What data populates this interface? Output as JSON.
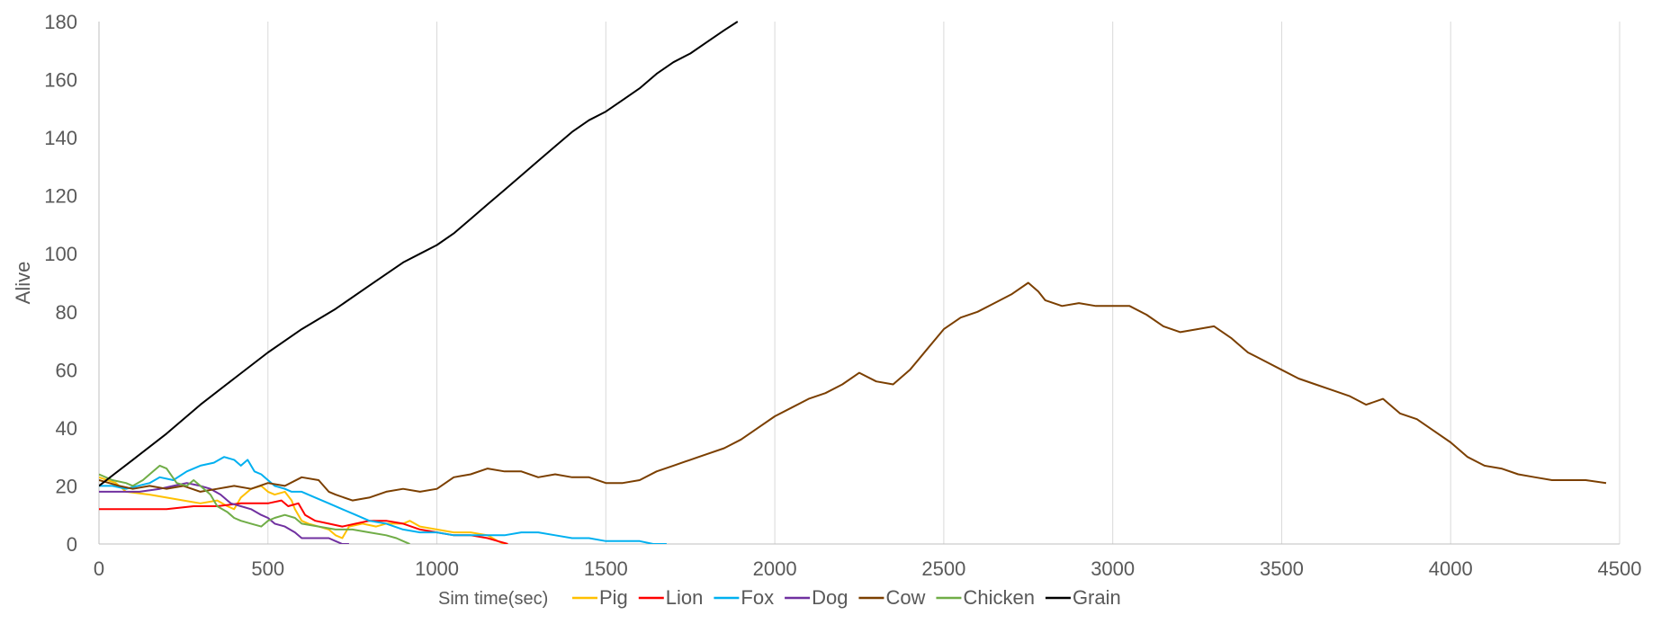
{
  "chart_data": {
    "type": "line",
    "title": "",
    "xlabel": "Sim time(sec)",
    "ylabel": "Alive",
    "xlim": [
      0,
      4500
    ],
    "ylim": [
      0,
      180
    ],
    "xticks": [
      0,
      500,
      1000,
      1500,
      2000,
      2500,
      3000,
      3500,
      4000,
      4500
    ],
    "yticks": [
      0,
      20,
      40,
      60,
      80,
      100,
      120,
      140,
      160,
      180
    ],
    "x_gridlines": true,
    "y_gridlines": false,
    "legend_position": "bottom",
    "series": [
      {
        "name": "Pig",
        "color": "#FFC000",
        "points": [
          [
            0,
            23
          ],
          [
            50,
            21
          ],
          [
            80,
            18
          ],
          [
            150,
            17
          ],
          [
            200,
            16
          ],
          [
            250,
            15
          ],
          [
            300,
            14
          ],
          [
            350,
            15
          ],
          [
            380,
            13
          ],
          [
            400,
            12
          ],
          [
            420,
            16
          ],
          [
            450,
            19
          ],
          [
            480,
            20
          ],
          [
            500,
            18
          ],
          [
            520,
            17
          ],
          [
            550,
            18
          ],
          [
            570,
            15
          ],
          [
            580,
            12
          ],
          [
            600,
            8
          ],
          [
            620,
            7
          ],
          [
            650,
            6
          ],
          [
            680,
            5
          ],
          [
            700,
            3
          ],
          [
            720,
            2
          ],
          [
            740,
            6
          ],
          [
            780,
            7
          ],
          [
            820,
            6
          ],
          [
            850,
            7
          ],
          [
            900,
            7
          ],
          [
            920,
            8
          ],
          [
            950,
            6
          ],
          [
            1000,
            5
          ],
          [
            1050,
            4
          ],
          [
            1100,
            4
          ],
          [
            1150,
            3
          ],
          [
            1180,
            1
          ],
          [
            1200,
            0
          ]
        ]
      },
      {
        "name": "Lion",
        "color": "#FF0000",
        "points": [
          [
            0,
            12
          ],
          [
            100,
            12
          ],
          [
            200,
            12
          ],
          [
            280,
            13
          ],
          [
            350,
            13
          ],
          [
            420,
            14
          ],
          [
            460,
            14
          ],
          [
            500,
            14
          ],
          [
            540,
            15
          ],
          [
            560,
            13
          ],
          [
            590,
            14
          ],
          [
            610,
            10
          ],
          [
            640,
            8
          ],
          [
            680,
            7
          ],
          [
            720,
            6
          ],
          [
            760,
            7
          ],
          [
            800,
            8
          ],
          [
            850,
            8
          ],
          [
            900,
            7
          ],
          [
            950,
            5
          ],
          [
            1000,
            4
          ],
          [
            1050,
            3
          ],
          [
            1100,
            3
          ],
          [
            1150,
            2
          ],
          [
            1180,
            1
          ],
          [
            1210,
            0
          ]
        ]
      },
      {
        "name": "Fox",
        "color": "#00B0F0",
        "points": [
          [
            0,
            20
          ],
          [
            40,
            20
          ],
          [
            80,
            19
          ],
          [
            150,
            21
          ],
          [
            180,
            23
          ],
          [
            220,
            22
          ],
          [
            260,
            25
          ],
          [
            300,
            27
          ],
          [
            340,
            28
          ],
          [
            370,
            30
          ],
          [
            400,
            29
          ],
          [
            420,
            27
          ],
          [
            440,
            29
          ],
          [
            460,
            25
          ],
          [
            480,
            24
          ],
          [
            500,
            22
          ],
          [
            520,
            20
          ],
          [
            550,
            19
          ],
          [
            570,
            18
          ],
          [
            600,
            18
          ],
          [
            640,
            16
          ],
          [
            680,
            14
          ],
          [
            720,
            12
          ],
          [
            760,
            10
          ],
          [
            800,
            8
          ],
          [
            850,
            7
          ],
          [
            900,
            5
          ],
          [
            950,
            4
          ],
          [
            1000,
            4
          ],
          [
            1050,
            3
          ],
          [
            1100,
            3
          ],
          [
            1200,
            3
          ],
          [
            1250,
            4
          ],
          [
            1300,
            4
          ],
          [
            1350,
            3
          ],
          [
            1400,
            2
          ],
          [
            1450,
            2
          ],
          [
            1500,
            1
          ],
          [
            1550,
            1
          ],
          [
            1600,
            1
          ],
          [
            1640,
            0
          ],
          [
            1680,
            0
          ]
        ]
      },
      {
        "name": "Dog",
        "color": "#7030A0",
        "points": [
          [
            0,
            18
          ],
          [
            60,
            18
          ],
          [
            120,
            18
          ],
          [
            180,
            19
          ],
          [
            220,
            20
          ],
          [
            260,
            21
          ],
          [
            300,
            20
          ],
          [
            330,
            19
          ],
          [
            360,
            17
          ],
          [
            390,
            14
          ],
          [
            420,
            13
          ],
          [
            450,
            12
          ],
          [
            480,
            10
          ],
          [
            500,
            9
          ],
          [
            520,
            7
          ],
          [
            550,
            6
          ],
          [
            580,
            4
          ],
          [
            600,
            2
          ],
          [
            650,
            2
          ],
          [
            680,
            2
          ],
          [
            700,
            1
          ],
          [
            720,
            0
          ],
          [
            740,
            0
          ]
        ]
      },
      {
        "name": "Cow",
        "color": "#7B3F00",
        "points": [
          [
            0,
            22
          ],
          [
            30,
            21
          ],
          [
            60,
            20
          ],
          [
            100,
            19
          ],
          [
            150,
            20
          ],
          [
            200,
            19
          ],
          [
            250,
            20
          ],
          [
            300,
            18
          ],
          [
            350,
            19
          ],
          [
            400,
            20
          ],
          [
            450,
            19
          ],
          [
            500,
            21
          ],
          [
            550,
            20
          ],
          [
            600,
            23
          ],
          [
            650,
            22
          ],
          [
            680,
            18
          ],
          [
            700,
            17
          ],
          [
            750,
            15
          ],
          [
            800,
            16
          ],
          [
            850,
            18
          ],
          [
            900,
            19
          ],
          [
            950,
            18
          ],
          [
            1000,
            19
          ],
          [
            1050,
            23
          ],
          [
            1100,
            24
          ],
          [
            1150,
            26
          ],
          [
            1200,
            25
          ],
          [
            1250,
            25
          ],
          [
            1300,
            23
          ],
          [
            1350,
            24
          ],
          [
            1400,
            23
          ],
          [
            1450,
            23
          ],
          [
            1500,
            21
          ],
          [
            1550,
            21
          ],
          [
            1600,
            22
          ],
          [
            1650,
            25
          ],
          [
            1700,
            27
          ],
          [
            1750,
            29
          ],
          [
            1800,
            31
          ],
          [
            1850,
            33
          ],
          [
            1900,
            36
          ],
          [
            1950,
            40
          ],
          [
            2000,
            44
          ],
          [
            2050,
            47
          ],
          [
            2100,
            50
          ],
          [
            2150,
            52
          ],
          [
            2200,
            55
          ],
          [
            2250,
            59
          ],
          [
            2300,
            56
          ],
          [
            2350,
            55
          ],
          [
            2400,
            60
          ],
          [
            2450,
            67
          ],
          [
            2500,
            74
          ],
          [
            2550,
            78
          ],
          [
            2600,
            80
          ],
          [
            2650,
            83
          ],
          [
            2700,
            86
          ],
          [
            2750,
            90
          ],
          [
            2780,
            87
          ],
          [
            2800,
            84
          ],
          [
            2850,
            82
          ],
          [
            2900,
            83
          ],
          [
            2950,
            82
          ],
          [
            3000,
            82
          ],
          [
            3050,
            82
          ],
          [
            3100,
            79
          ],
          [
            3150,
            75
          ],
          [
            3200,
            73
          ],
          [
            3250,
            74
          ],
          [
            3300,
            75
          ],
          [
            3350,
            71
          ],
          [
            3400,
            66
          ],
          [
            3450,
            63
          ],
          [
            3500,
            60
          ],
          [
            3550,
            57
          ],
          [
            3600,
            55
          ],
          [
            3650,
            53
          ],
          [
            3700,
            51
          ],
          [
            3750,
            48
          ],
          [
            3800,
            50
          ],
          [
            3850,
            45
          ],
          [
            3900,
            43
          ],
          [
            3950,
            39
          ],
          [
            4000,
            35
          ],
          [
            4050,
            30
          ],
          [
            4100,
            27
          ],
          [
            4150,
            26
          ],
          [
            4200,
            24
          ],
          [
            4250,
            23
          ],
          [
            4300,
            22
          ],
          [
            4350,
            22
          ],
          [
            4400,
            22
          ],
          [
            4460,
            21
          ]
        ]
      },
      {
        "name": "Chicken",
        "color": "#70AD47",
        "points": [
          [
            0,
            24
          ],
          [
            40,
            22
          ],
          [
            80,
            21
          ],
          [
            100,
            20
          ],
          [
            130,
            22
          ],
          [
            160,
            25
          ],
          [
            180,
            27
          ],
          [
            200,
            26
          ],
          [
            230,
            21
          ],
          [
            260,
            20
          ],
          [
            280,
            22
          ],
          [
            300,
            20
          ],
          [
            330,
            17
          ],
          [
            350,
            13
          ],
          [
            380,
            11
          ],
          [
            400,
            9
          ],
          [
            420,
            8
          ],
          [
            450,
            7
          ],
          [
            480,
            6
          ],
          [
            500,
            8
          ],
          [
            520,
            9
          ],
          [
            550,
            10
          ],
          [
            580,
            9
          ],
          [
            600,
            7
          ],
          [
            650,
            6
          ],
          [
            700,
            5
          ],
          [
            750,
            5
          ],
          [
            800,
            4
          ],
          [
            850,
            3
          ],
          [
            880,
            2
          ],
          [
            900,
            1
          ],
          [
            920,
            0
          ]
        ]
      },
      {
        "name": "Grain",
        "color": "#000000",
        "points": [
          [
            0,
            20
          ],
          [
            100,
            29
          ],
          [
            200,
            38
          ],
          [
            300,
            48
          ],
          [
            400,
            57
          ],
          [
            500,
            66
          ],
          [
            600,
            74
          ],
          [
            700,
            81
          ],
          [
            800,
            89
          ],
          [
            900,
            97
          ],
          [
            950,
            100
          ],
          [
            1000,
            103
          ],
          [
            1050,
            107
          ],
          [
            1100,
            112
          ],
          [
            1150,
            117
          ],
          [
            1200,
            122
          ],
          [
            1250,
            127
          ],
          [
            1300,
            132
          ],
          [
            1350,
            137
          ],
          [
            1400,
            142
          ],
          [
            1450,
            146
          ],
          [
            1500,
            149
          ],
          [
            1550,
            153
          ],
          [
            1600,
            157
          ],
          [
            1650,
            162
          ],
          [
            1700,
            166
          ],
          [
            1750,
            169
          ],
          [
            1800,
            173
          ],
          [
            1850,
            177
          ],
          [
            1890,
            180
          ]
        ]
      }
    ]
  }
}
